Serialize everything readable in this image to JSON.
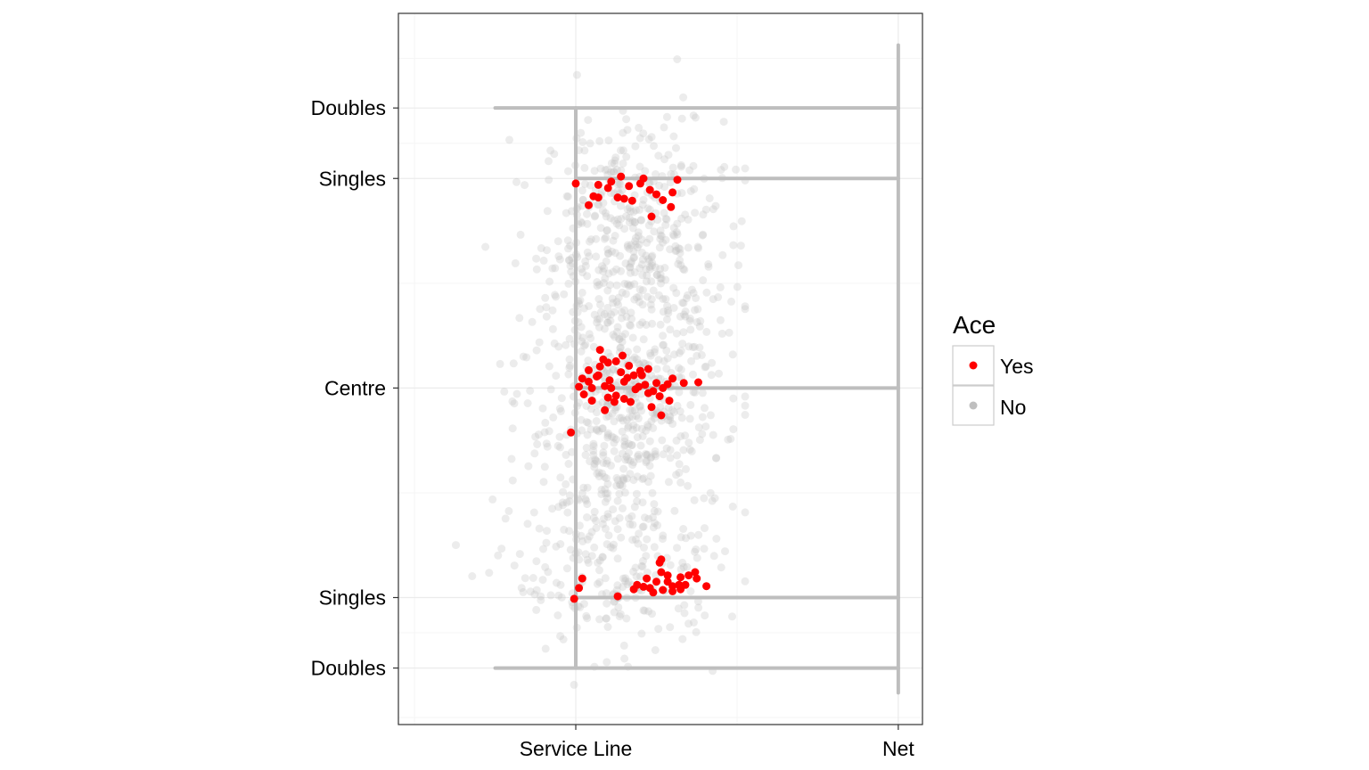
{
  "chart_data": {
    "type": "scatter",
    "title": "",
    "xlabel": "",
    "ylabel": "",
    "x_ticks": [
      "Service Line",
      "Net"
    ],
    "y_ticks": [
      {
        "value": 4.11,
        "label": "Doubles"
      },
      {
        "value": 3.0,
        "label": "Singles"
      },
      {
        "value": -0.3,
        "label": "Centre"
      },
      {
        "value": -3.6,
        "label": "Singles"
      },
      {
        "value": -4.71,
        "label": "Doubles"
      }
    ],
    "xlim": [
      -1.1,
      2.15
    ],
    "ylim": [
      -5.6,
      5.6
    ],
    "grid": true,
    "legend": {
      "title": "Ace",
      "position": "right",
      "entries": [
        {
          "label": "Yes",
          "color": "#ff0000"
        },
        {
          "label": "No",
          "color": "#bfbfbf"
        }
      ]
    },
    "court_lines": {
      "color": "#bebebe",
      "service_line_x": 0,
      "net_x": 2,
      "net_y_range": [
        -5.1,
        5.1
      ],
      "service_line_y_range": [
        -4.71,
        4.11
      ],
      "doubles_x_range": [
        -0.5,
        2
      ],
      "singles_x_range": [
        0,
        2
      ],
      "centre_x_range": [
        0,
        2
      ]
    },
    "series": [
      {
        "name": "No",
        "color": "#bfbfbf",
        "opacity": 0.3,
        "clusters": [
          {
            "x_mean": 0.35,
            "x_sd": 0.28,
            "y_mean": 2.05,
            "y_sd": 0.95,
            "n": 420
          },
          {
            "x_mean": 0.3,
            "x_sd": 0.32,
            "y_mean": -0.8,
            "y_sd": 1.15,
            "n": 560
          },
          {
            "x_mean": 0.25,
            "x_sd": 0.33,
            "y_mean": -3.3,
            "y_sd": 0.6,
            "n": 170
          }
        ]
      },
      {
        "name": "Yes",
        "color": "#ff0000",
        "opacity": 1,
        "points": [
          [
            0.0,
            2.92
          ],
          [
            0.14,
            2.9
          ],
          [
            0.22,
            2.95
          ],
          [
            0.28,
            3.03
          ],
          [
            0.42,
            3.0
          ],
          [
            0.63,
            2.98
          ],
          [
            0.4,
            2.92
          ],
          [
            0.2,
            2.85
          ],
          [
            0.33,
            2.88
          ],
          [
            0.46,
            2.82
          ],
          [
            0.11,
            2.72
          ],
          [
            0.3,
            2.68
          ],
          [
            0.08,
            2.58
          ],
          [
            0.26,
            2.7
          ],
          [
            0.35,
            2.65
          ],
          [
            0.5,
            2.75
          ],
          [
            0.54,
            2.66
          ],
          [
            0.6,
            2.78
          ],
          [
            0.59,
            2.55
          ],
          [
            0.47,
            2.4
          ],
          [
            0.14,
            2.7
          ],
          [
            0.15,
            0.04
          ],
          [
            0.28,
            -0.05
          ],
          [
            0.13,
            -0.12
          ],
          [
            0.21,
            -0.18
          ],
          [
            0.32,
            -0.14
          ],
          [
            0.41,
            -0.1
          ],
          [
            0.04,
            -0.15
          ],
          [
            0.08,
            -0.2
          ],
          [
            0.18,
            -0.27
          ],
          [
            0.37,
            -0.32
          ],
          [
            0.5,
            -0.22
          ],
          [
            0.54,
            -0.3
          ],
          [
            0.1,
            -0.3
          ],
          [
            0.25,
            -0.42
          ],
          [
            0.3,
            -0.47
          ],
          [
            0.45,
            -0.38
          ],
          [
            0.6,
            -0.15
          ],
          [
            0.67,
            -0.22
          ],
          [
            0.76,
            -0.21
          ],
          [
            0.57,
            -0.24
          ],
          [
            0.48,
            -0.35
          ],
          [
            0.2,
            -0.45
          ],
          [
            0.05,
            -0.4
          ],
          [
            0.1,
            -0.5
          ],
          [
            0.24,
            -0.52
          ],
          [
            0.34,
            -0.52
          ],
          [
            0.08,
            -0.02
          ],
          [
            0.14,
            -0.1
          ],
          [
            0.4,
            -0.03
          ],
          [
            0.45,
            0.0
          ],
          [
            0.25,
            0.12
          ],
          [
            0.29,
            0.21
          ],
          [
            0.33,
            0.05
          ],
          [
            0.36,
            -0.1
          ],
          [
            0.39,
            -0.28
          ],
          [
            0.52,
            -0.43
          ],
          [
            0.58,
            -0.5
          ],
          [
            0.47,
            -0.6
          ],
          [
            0.53,
            -0.73
          ],
          [
            0.18,
            -0.65
          ],
          [
            0.15,
            0.3
          ],
          [
            0.17,
            0.15
          ],
          [
            0.2,
            0.1
          ],
          [
            0.43,
            -0.25
          ],
          [
            -0.03,
            -1.0
          ],
          [
            0.3,
            -0.2
          ],
          [
            0.22,
            -0.3
          ],
          [
            0.02,
            -0.28
          ],
          [
            0.52,
            -3.05
          ],
          [
            0.53,
            -3.2
          ],
          [
            0.5,
            -3.35
          ],
          [
            0.44,
            -3.3
          ],
          [
            0.46,
            -3.45
          ],
          [
            0.57,
            -3.35
          ],
          [
            0.6,
            -3.42
          ],
          [
            0.64,
            -3.4
          ],
          [
            0.68,
            -3.4
          ],
          [
            0.7,
            -3.25
          ],
          [
            0.75,
            -3.3
          ],
          [
            0.74,
            -3.2
          ],
          [
            0.57,
            -3.25
          ],
          [
            0.54,
            -3.48
          ],
          [
            0.48,
            -3.52
          ],
          [
            0.42,
            -3.43
          ],
          [
            0.38,
            -3.4
          ],
          [
            0.36,
            -3.47
          ],
          [
            0.26,
            -3.58
          ],
          [
            0.02,
            -3.45
          ],
          [
            0.04,
            -3.3
          ],
          [
            -0.01,
            -3.62
          ],
          [
            0.53,
            -3.0
          ],
          [
            0.6,
            -3.5
          ],
          [
            0.65,
            -3.47
          ],
          [
            0.81,
            -3.42
          ],
          [
            0.65,
            -3.28
          ]
        ]
      }
    ]
  }
}
